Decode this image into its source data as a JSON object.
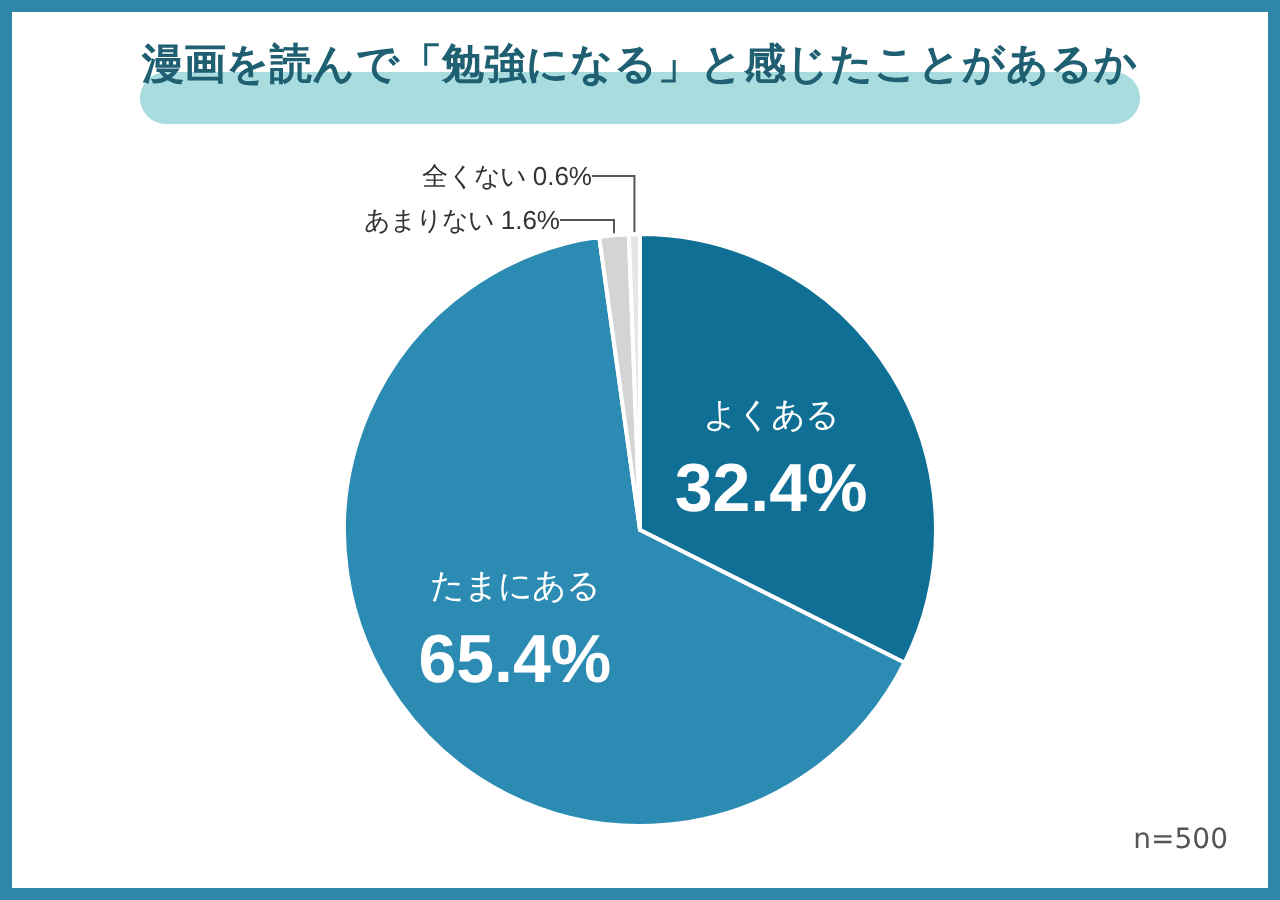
{
  "chart_data": {
    "type": "pie",
    "title": "漫画を読んで「勉強になる」と感じたことがあるか",
    "categories": [
      "よくある",
      "たまにある",
      "あまりない",
      "全くない"
    ],
    "values": [
      32.4,
      65.4,
      1.6,
      0.6
    ],
    "colors": [
      "#0f6f95",
      "#2b8bb2",
      "#d4d4d4",
      "#e6e6e6"
    ],
    "value_labels": [
      "32.4%",
      "65.4%",
      "1.6%",
      "0.6%"
    ],
    "annotations": [
      "n=500"
    ]
  }
}
